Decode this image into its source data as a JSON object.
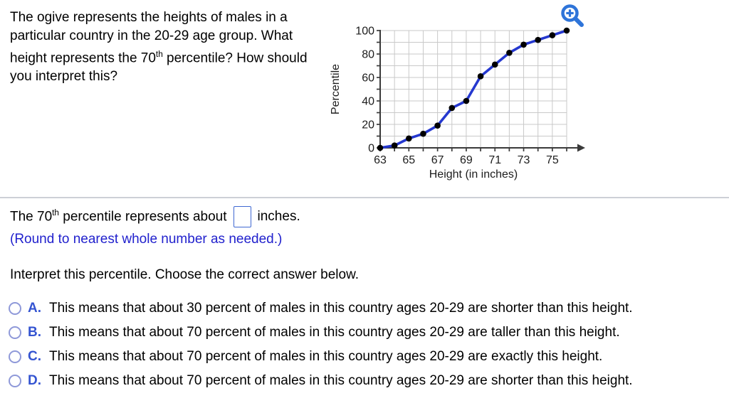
{
  "question": {
    "before_sup": "The ogive represents the heights of males in a particular country in the 20-29 age group. What height represents the 70",
    "sup": "th",
    "after_sup": " percentile? How should you interpret this?"
  },
  "chart_data": {
    "type": "line",
    "title": "",
    "xlabel": "Height (in inches)",
    "ylabel": "Percentile",
    "x": [
      63,
      64,
      65,
      66,
      67,
      68,
      69,
      70,
      71,
      72,
      73,
      74,
      75,
      76
    ],
    "y": [
      0,
      2,
      8,
      12,
      19,
      34,
      40,
      61,
      71,
      81,
      88,
      92,
      96,
      100
    ],
    "xlim": [
      63,
      76
    ],
    "ylim": [
      0,
      100
    ],
    "x_tick_step": 1,
    "y_tick_step": 10,
    "x_tick_labels": [
      "63",
      "65",
      "67",
      "69",
      "71",
      "73",
      "75"
    ],
    "y_tick_labels": [
      "0",
      "20",
      "40",
      "60",
      "80",
      "100"
    ],
    "grid": true,
    "legend": "none",
    "line_color": "#2538cf",
    "marker_color": "#000000",
    "grid_color": "#c9c9c9",
    "axis_color": "#3a3a3a"
  },
  "icons": {
    "zoom_in": "magnifier-with-plus",
    "x_axis_arrow": "right-arrowhead"
  },
  "answer": {
    "before_sup": "The 70",
    "sup": "th",
    "after_sup": " percentile represents about",
    "input_value": "",
    "after_input": "inches.",
    "note": "(Round to nearest whole number as needed.)"
  },
  "interpret_prompt": "Interpret this percentile. Choose the correct answer below.",
  "options": [
    {
      "letter": "A.",
      "text": "This means that about 30 percent of males in this country ages 20-29 are shorter than this height.",
      "selected": false
    },
    {
      "letter": "B.",
      "text": "This means that about 70 percent of males in this country ages 20-29 are taller than this height.",
      "selected": false
    },
    {
      "letter": "C.",
      "text": "This means that about 70 percent of males in this country ages 20-29 are exactly this height.",
      "selected": false
    },
    {
      "letter": "D.",
      "text": "This means that about 70 percent of males in this country ages 20-29 are shorter than this height.",
      "selected": false
    }
  ],
  "colors": {
    "accent_blue": "#2e74d9",
    "note_blue": "#2121cd",
    "option_letter_blue": "#3454d1",
    "radio_ring": "#8f99d9",
    "input_border": "#3f68d2",
    "divider": "#cdd0d6"
  }
}
